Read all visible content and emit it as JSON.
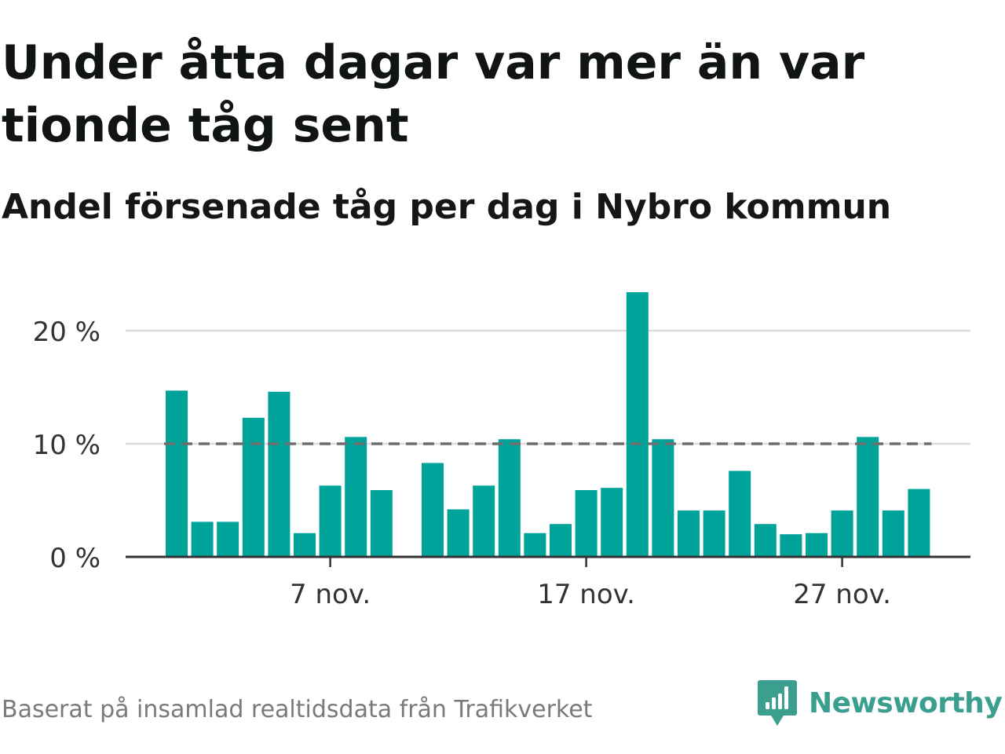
{
  "title": "Under åtta dagar var mer än var tionde tåg sent",
  "subtitle": "Andel försenade tåg per dag i Nybro kommun",
  "source": "Baserat på insamlad realtidsdata från Trafikverket",
  "brand": {
    "name": "Newsworthy",
    "logo_icon": "newsworthy-logo-icon",
    "color": "#3a9f8f"
  },
  "colors": {
    "bar": "#00a39a",
    "grid": "#dcdcdc",
    "axis": "#333333",
    "reference_line": "#6e6e6e",
    "tick_text": "#333333"
  },
  "chart_data": {
    "type": "bar",
    "title": "Under åtta dagar var mer än var tionde tåg sent",
    "subtitle": "Andel försenade tåg per dag i Nybro kommun",
    "xlabel": "",
    "ylabel": "",
    "x_axis": "date",
    "x_ticks": [
      {
        "day": 7,
        "label": "7 nov."
      },
      {
        "day": 17,
        "label": "17 nov."
      },
      {
        "day": 27,
        "label": "27 nov."
      }
    ],
    "y_ticks": [
      {
        "value": 0,
        "label": "0 %"
      },
      {
        "value": 10,
        "label": "10 %"
      },
      {
        "value": 20,
        "label": "20 %"
      }
    ],
    "ylim": [
      0,
      26
    ],
    "grid": true,
    "reference_line": {
      "value": 10,
      "style": "dashed"
    },
    "data": [
      {
        "day": 1,
        "value": 14.7
      },
      {
        "day": 2,
        "value": 3.1
      },
      {
        "day": 3,
        "value": 3.1
      },
      {
        "day": 4,
        "value": 12.3
      },
      {
        "day": 5,
        "value": 14.6
      },
      {
        "day": 6,
        "value": 2.1
      },
      {
        "day": 7,
        "value": 6.3
      },
      {
        "day": 8,
        "value": 10.6
      },
      {
        "day": 9,
        "value": 5.9
      },
      {
        "day": 11,
        "value": 8.3
      },
      {
        "day": 12,
        "value": 4.2
      },
      {
        "day": 13,
        "value": 6.3
      },
      {
        "day": 14,
        "value": 10.4
      },
      {
        "day": 15,
        "value": 2.1
      },
      {
        "day": 16,
        "value": 2.9
      },
      {
        "day": 17,
        "value": 5.9
      },
      {
        "day": 18,
        "value": 6.1
      },
      {
        "day": 19,
        "value": 23.4
      },
      {
        "day": 20,
        "value": 10.4
      },
      {
        "day": 21,
        "value": 4.1
      },
      {
        "day": 22,
        "value": 4.1
      },
      {
        "day": 23,
        "value": 7.6
      },
      {
        "day": 24,
        "value": 2.9
      },
      {
        "day": 25,
        "value": 2.0
      },
      {
        "day": 26,
        "value": 2.1
      },
      {
        "day": 27,
        "value": 4.1
      },
      {
        "day": 28,
        "value": 10.6
      },
      {
        "day": 29,
        "value": 4.1
      },
      {
        "day": 30,
        "value": 6.0
      }
    ]
  }
}
